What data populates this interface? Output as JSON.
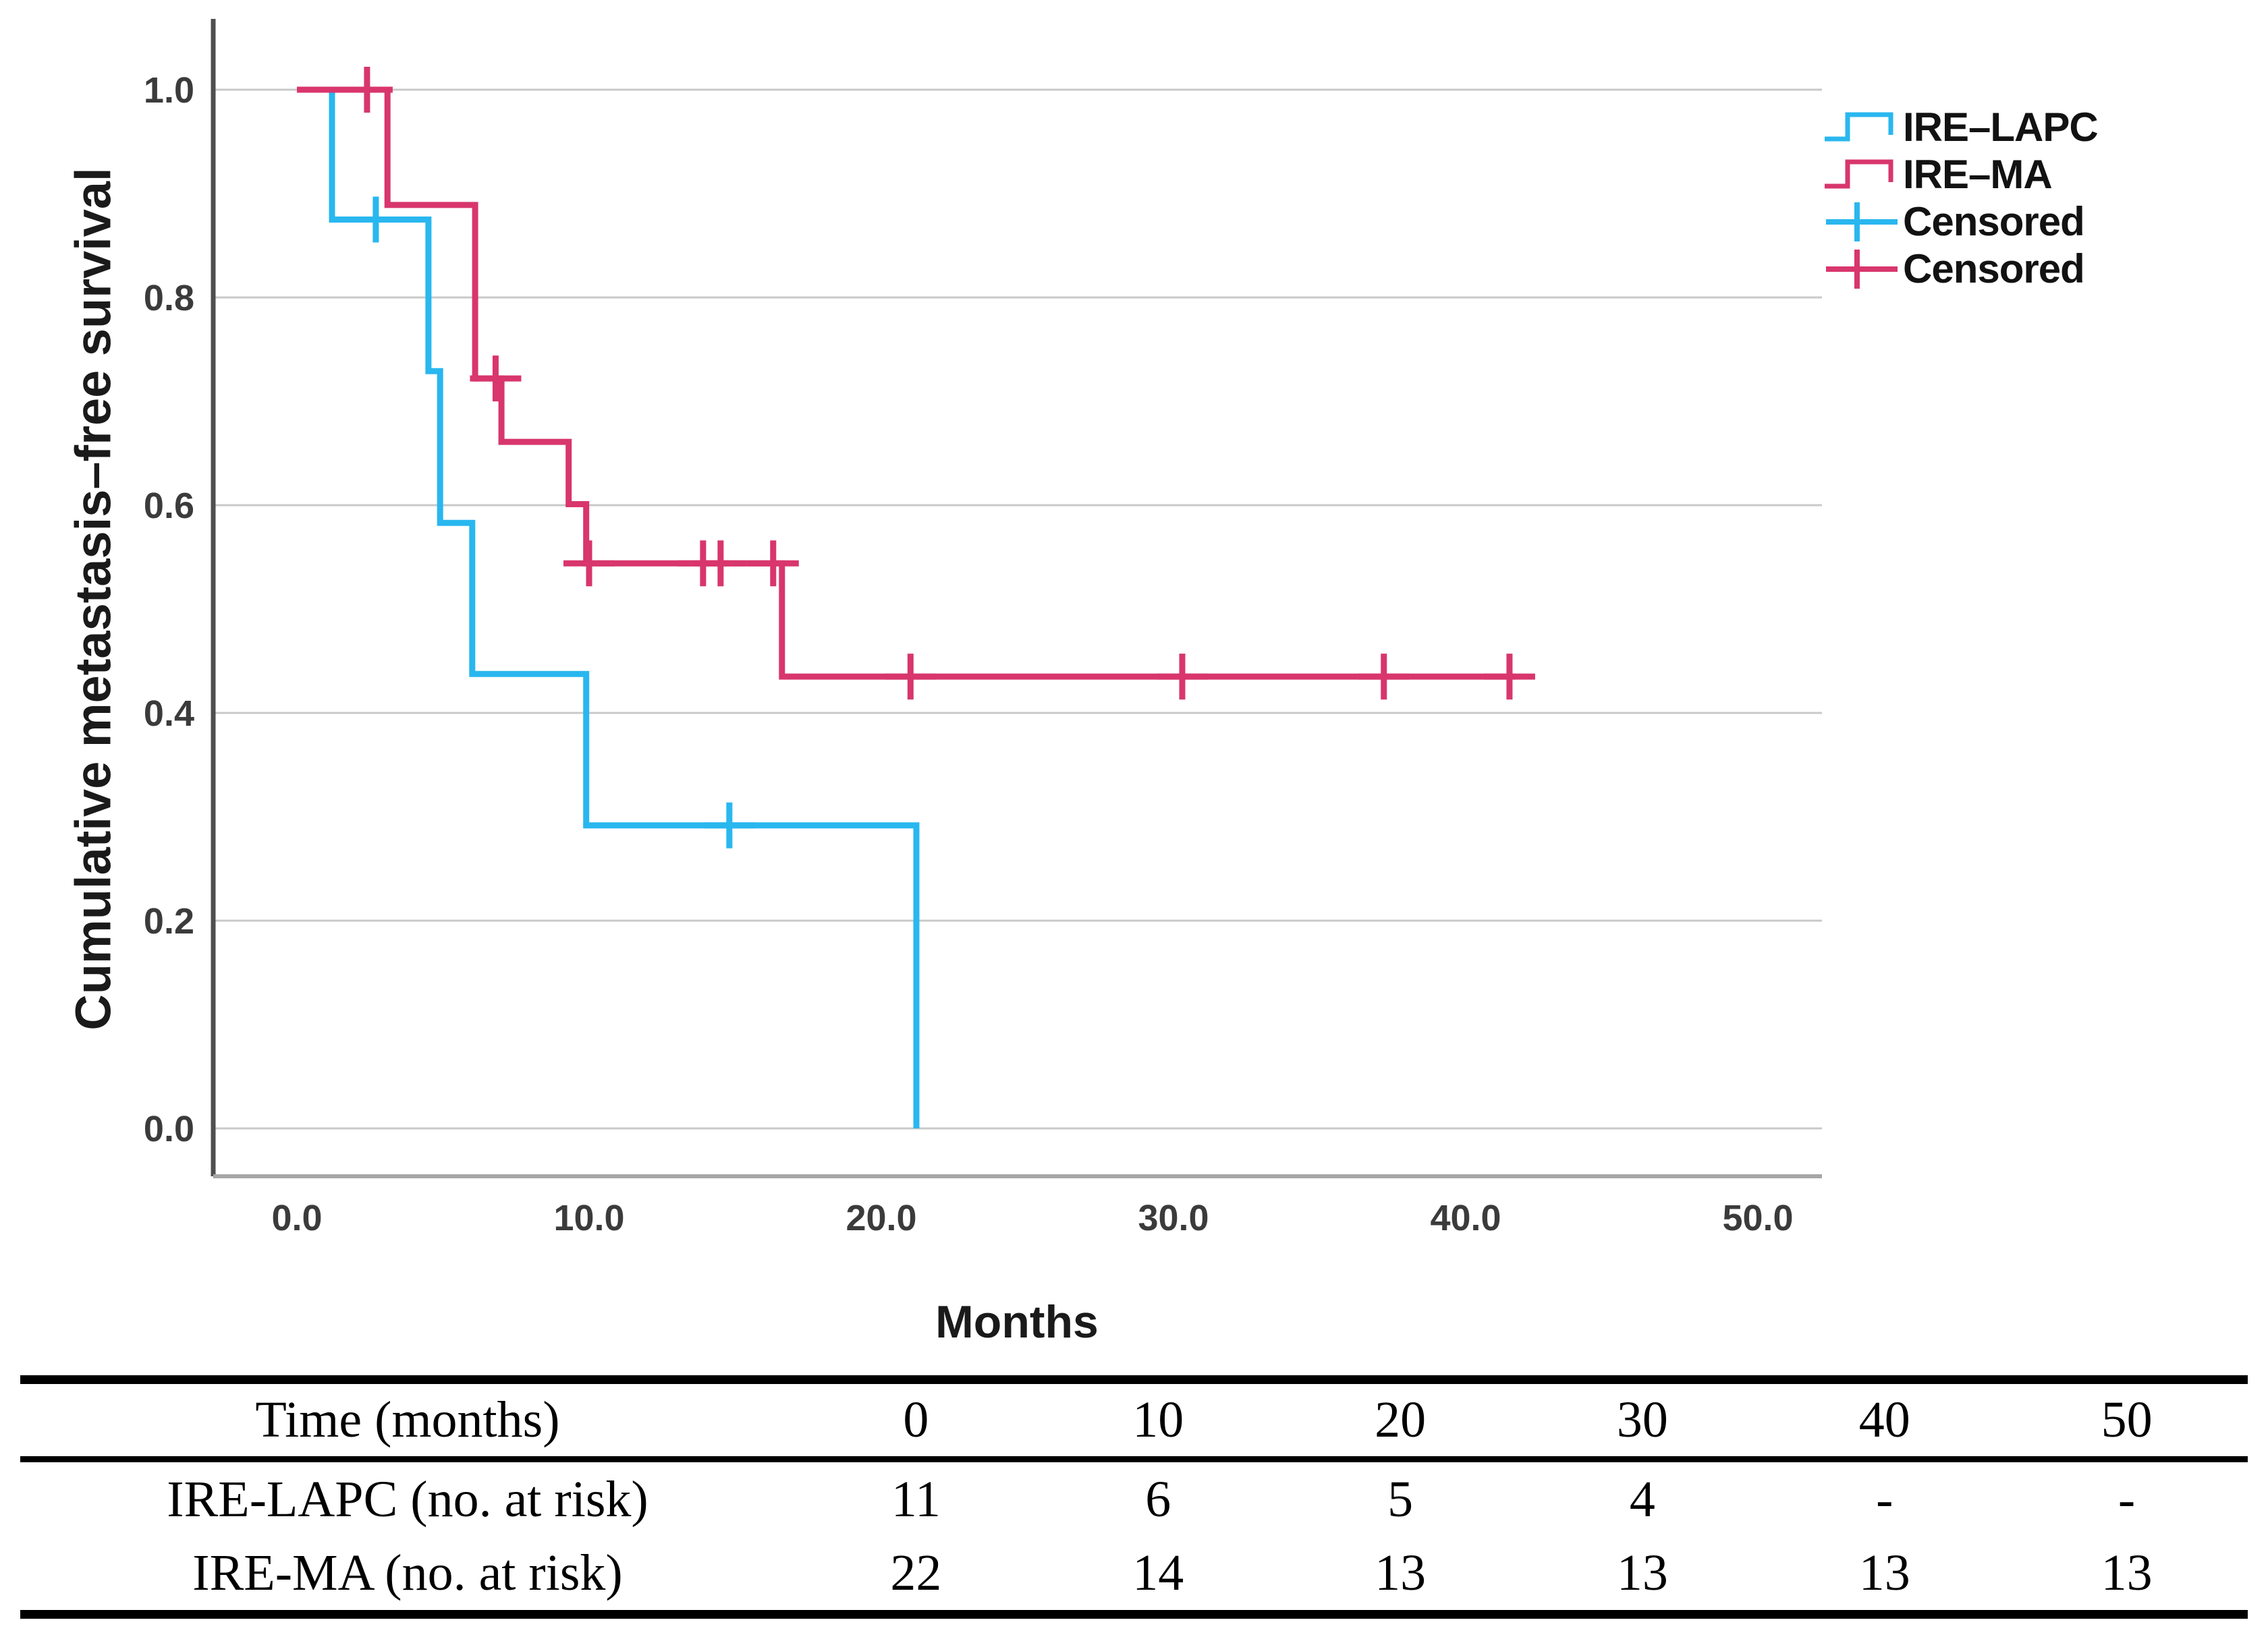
{
  "chart_data": {
    "type": "line",
    "subtype": "kaplan-meier-step",
    "title": "",
    "xlabel": "Months",
    "ylabel": "Cumulative metastasis–free survival",
    "x_ticks": [
      0,
      10,
      20,
      30,
      40,
      50
    ],
    "x_tick_labels": [
      "0.0",
      "10.0",
      "20.0",
      "30.0",
      "40.0",
      "50.0"
    ],
    "y_ticks": [
      0.0,
      0.2,
      0.4,
      0.6,
      0.8,
      1.0
    ],
    "y_tick_labels": [
      "0.0",
      "0.2",
      "0.4",
      "0.6",
      "0.8",
      "1.0"
    ],
    "xlim": [
      -2.9,
      52.2
    ],
    "ylim": [
      -0.046,
      1.068
    ],
    "grid": "horizontal-only",
    "legend_position": "outside-upper-right",
    "series": [
      {
        "name": "IRE-LAPC",
        "color": "#29B7EF",
        "steps": [
          [
            0,
            1.0
          ],
          [
            1.2,
            1.0
          ],
          [
            1.2,
            0.875
          ],
          [
            4.5,
            0.875
          ],
          [
            4.5,
            0.729
          ],
          [
            4.9,
            0.729
          ],
          [
            4.9,
            0.583
          ],
          [
            6.0,
            0.583
          ],
          [
            6.0,
            0.4375
          ],
          [
            9.9,
            0.4375
          ],
          [
            9.9,
            0.2917
          ],
          [
            21.2,
            0.2917
          ],
          [
            21.2,
            0.0
          ]
        ],
        "censored": [
          [
            2.7,
            0.875
          ],
          [
            14.8,
            0.2917
          ]
        ]
      },
      {
        "name": "IRE-MA",
        "color": "#D8366D",
        "steps": [
          [
            0,
            1.0
          ],
          [
            3.1,
            1.0
          ],
          [
            3.1,
            0.889
          ],
          [
            6.1,
            0.889
          ],
          [
            6.1,
            0.722
          ],
          [
            7.0,
            0.722
          ],
          [
            7.0,
            0.661
          ],
          [
            9.3,
            0.661
          ],
          [
            9.3,
            0.601
          ],
          [
            9.9,
            0.601
          ],
          [
            9.9,
            0.544
          ],
          [
            16.6,
            0.544
          ],
          [
            16.6,
            0.435
          ],
          [
            41.7,
            0.435
          ]
        ],
        "censored": [
          [
            2.4,
            1.0
          ],
          [
            6.8,
            0.722
          ],
          [
            10.0,
            0.544
          ],
          [
            13.9,
            0.544
          ],
          [
            14.5,
            0.544
          ],
          [
            16.3,
            0.544
          ],
          [
            21.0,
            0.435
          ],
          [
            30.3,
            0.435
          ],
          [
            37.2,
            0.435
          ],
          [
            41.5,
            0.435
          ]
        ]
      }
    ],
    "legend": [
      {
        "label": "IRE–LAPC",
        "marker": "step",
        "color": "#29B7EF"
      },
      {
        "label": "IRE–MA",
        "marker": "step",
        "color": "#D8366D"
      },
      {
        "label": "Censored",
        "marker": "plus",
        "color": "#29B7EF"
      },
      {
        "label": "Censored",
        "marker": "plus",
        "color": "#D8366D"
      }
    ]
  },
  "risk_table": {
    "columns": [
      "Time (months)",
      "0",
      "10",
      "20",
      "30",
      "40",
      "50"
    ],
    "rows": [
      {
        "label": "IRE-LAPC (no. at risk)",
        "values": [
          "11",
          "6",
          "5",
          "4",
          "-",
          "-"
        ]
      },
      {
        "label": "IRE-MA (no. at risk)",
        "values": [
          "22",
          "14",
          "13",
          "13",
          "13",
          "13"
        ]
      }
    ]
  },
  "colors": {
    "background": "#FFFFFF",
    "gridline": "#C9C9C9",
    "y_axis_line": "#4F4F4F",
    "x_axis_line": "#A6A6A6",
    "tick_label": "#3B3B3B",
    "axis_title": "#1A1A1A",
    "legend_text": "#121212",
    "table_rule": "#000000"
  }
}
